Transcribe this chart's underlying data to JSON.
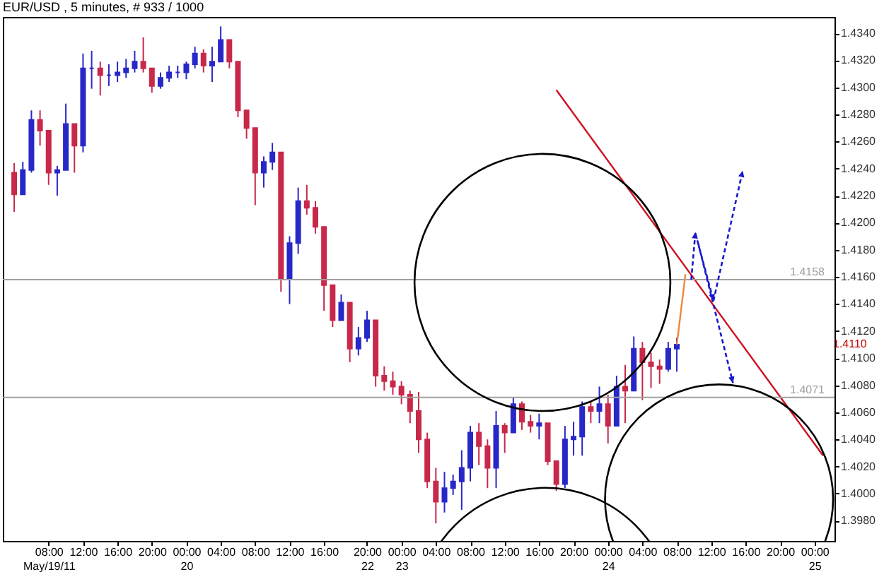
{
  "chart_data": {
    "type": "candlestick",
    "title": "EUR/USD , 5 minutes, # 933 / 1000",
    "categories": [
      null,
      null,
      null,
      null,
      "08:00\nMay/19/11",
      null,
      null,
      null,
      "12:00",
      null,
      null,
      null,
      "16:00",
      null,
      null,
      null,
      "20:00",
      null,
      null,
      null,
      "00:00\n20",
      null,
      null,
      null,
      "04:00",
      null,
      null,
      null,
      "08:00",
      null,
      null,
      null,
      "12:00",
      null,
      null,
      null,
      "16:00",
      null,
      null,
      null,
      null,
      "20:00\n22",
      null,
      null,
      null,
      "00:00\n23",
      null,
      null,
      null,
      "04:00",
      null,
      null,
      null,
      "08:00",
      null,
      null,
      null,
      "12:00",
      null,
      null,
      null,
      "16:00",
      null,
      null,
      null,
      "20:00",
      null,
      null,
      null,
      "00:00\n24",
      null,
      null,
      null,
      "04:00",
      null,
      null,
      null,
      "08:00",
      null,
      null,
      null,
      "12:00",
      null,
      null,
      null,
      "16:00",
      null,
      null,
      null,
      "20:00",
      null,
      null,
      null,
      "00:00\n25",
      null
    ],
    "ohlc": [
      [
        1.4237,
        1.4244,
        1.4208,
        1.4221
      ],
      [
        1.4221,
        1.4245,
        1.4221,
        1.4239
      ],
      [
        1.4239,
        1.4283,
        1.4237,
        1.4276
      ],
      [
        1.4276,
        1.4283,
        1.4257,
        1.4268
      ],
      [
        1.4268,
        1.4268,
        1.4228,
        1.4237
      ],
      [
        1.4237,
        1.4242,
        1.422,
        1.4239
      ],
      [
        1.4239,
        1.4288,
        1.4239,
        1.4273
      ],
      [
        1.4273,
        1.4273,
        1.4237,
        1.4257
      ],
      [
        1.4257,
        1.4325,
        1.4252,
        1.4314
      ],
      [
        1.4314,
        1.4327,
        1.4299,
        1.4314
      ],
      [
        1.4314,
        1.4319,
        1.4294,
        1.4309
      ],
      [
        1.4309,
        1.4317,
        1.4301,
        1.4309
      ],
      [
        1.4309,
        1.4319,
        1.4304,
        1.4311
      ],
      [
        1.4311,
        1.4321,
        1.4307,
        1.4314
      ],
      [
        1.4314,
        1.4327,
        1.4311,
        1.4319
      ],
      [
        1.4319,
        1.4337,
        1.4311,
        1.4314
      ],
      [
        1.4314,
        1.4314,
        1.4296,
        1.4301
      ],
      [
        1.4301,
        1.4311,
        1.4299,
        1.4307
      ],
      [
        1.4307,
        1.4316,
        1.4304,
        1.4311
      ],
      [
        1.4311,
        1.4316,
        1.4307,
        1.4311
      ],
      [
        1.4311,
        1.4319,
        1.4306,
        1.4317
      ],
      [
        1.4317,
        1.433,
        1.4314,
        1.4325
      ],
      [
        1.4325,
        1.4328,
        1.4311,
        1.4316
      ],
      [
        1.4316,
        1.433,
        1.4304,
        1.4319
      ],
      [
        1.4319,
        1.4345,
        1.4319,
        1.4335
      ],
      [
        1.4335,
        1.4335,
        1.4314,
        1.4319
      ],
      [
        1.4319,
        1.4319,
        1.4278,
        1.4283
      ],
      [
        1.4283,
        1.4283,
        1.4262,
        1.427
      ],
      [
        1.427,
        1.427,
        1.4213,
        1.4237
      ],
      [
        1.4237,
        1.4249,
        1.4226,
        1.4245
      ],
      [
        1.4245,
        1.4259,
        1.4239,
        1.4252
      ],
      [
        1.4252,
        1.4252,
        1.4149,
        1.4159
      ],
      [
        1.4159,
        1.419,
        1.414,
        1.4185
      ],
      [
        1.4185,
        1.4226,
        1.4177,
        1.4216
      ],
      [
        1.4216,
        1.4228,
        1.4206,
        1.4211
      ],
      [
        1.4211,
        1.4216,
        1.4192,
        1.4197
      ],
      [
        1.4197,
        1.4197,
        1.4135,
        1.4154
      ],
      [
        1.4154,
        1.4154,
        1.4123,
        1.4128
      ],
      [
        1.4128,
        1.4147,
        1.4128,
        1.4141
      ],
      [
        1.4141,
        1.4141,
        1.4097,
        1.4107
      ],
      [
        1.4107,
        1.4123,
        1.4102,
        1.4115
      ],
      [
        1.4115,
        1.4135,
        1.4112,
        1.4128
      ],
      [
        1.4128,
        1.4128,
        1.4079,
        1.4087
      ],
      [
        1.4087,
        1.4094,
        1.4076,
        1.4083
      ],
      [
        1.4083,
        1.409,
        1.4073,
        1.4079
      ],
      [
        1.4079,
        1.4083,
        1.4066,
        1.4073
      ],
      [
        1.4073,
        1.4076,
        1.4052,
        1.4061
      ],
      [
        1.4061,
        1.4075,
        1.403,
        1.404
      ],
      [
        1.404,
        1.4045,
        1.4004,
        1.4009
      ],
      [
        1.4009,
        1.4019,
        1.3978,
        1.3994
      ],
      [
        1.3994,
        1.4016,
        1.3986,
        1.4004
      ],
      [
        1.4004,
        1.4014,
        1.3999,
        1.4009
      ],
      [
        1.4009,
        1.4032,
        1.3988,
        1.4019
      ],
      [
        1.4019,
        1.405,
        1.4009,
        1.4045
      ],
      [
        1.4045,
        1.4052,
        1.4021,
        1.4035
      ],
      [
        1.4035,
        1.404,
        1.4004,
        1.4019
      ],
      [
        1.4019,
        1.4061,
        1.4004,
        1.405
      ],
      [
        1.405,
        1.4052,
        1.403,
        1.4045
      ],
      [
        1.4045,
        1.4071,
        1.4045,
        1.4066
      ],
      [
        1.4066,
        1.4068,
        1.4047,
        1.4053
      ],
      [
        1.4053,
        1.4058,
        1.4045,
        1.405
      ],
      [
        1.405,
        1.4059,
        1.404,
        1.4052
      ],
      [
        1.4052,
        1.4052,
        1.4021,
        1.4024
      ],
      [
        1.4024,
        1.4024,
        1.4002,
        1.4007
      ],
      [
        1.4007,
        1.405,
        1.4004,
        1.404
      ],
      [
        1.404,
        1.4053,
        1.4028,
        1.4042
      ],
      [
        1.4042,
        1.4068,
        1.4028,
        1.4064
      ],
      [
        1.4064,
        1.4068,
        1.4052,
        1.4061
      ],
      [
        1.4061,
        1.4079,
        1.4052,
        1.4066
      ],
      [
        1.4066,
        1.4073,
        1.4037,
        1.405
      ],
      [
        1.405,
        1.4087,
        1.405,
        1.4079
      ],
      [
        1.4079,
        1.4095,
        1.4052,
        1.4076
      ],
      [
        1.4076,
        1.4116,
        1.4076,
        1.4107
      ],
      [
        1.4107,
        1.4112,
        1.4069,
        1.4097
      ],
      [
        1.4097,
        1.4104,
        1.4078,
        1.4094
      ],
      [
        1.4094,
        1.4099,
        1.4081,
        1.4092
      ],
      [
        1.4092,
        1.4112,
        1.409,
        1.4107
      ],
      [
        1.4107,
        1.4115,
        1.409,
        1.411
      ],
      null,
      null,
      null,
      null,
      null,
      null,
      null,
      null,
      null,
      null,
      null,
      null,
      null,
      null,
      null,
      null,
      null
    ],
    "colors": [
      "#c8284a",
      "#2828c8",
      "#2828c8",
      "#c8284a",
      "#c8284a",
      "#2828c8",
      "#2828c8",
      "#c8284a",
      "#2828c8",
      "#2828c8",
      "#c8284a",
      "#2828c8",
      "#2828c8",
      "#2828c8",
      "#2828c8",
      "#c8284a",
      "#c8284a",
      "#2828c8",
      "#2828c8",
      "#2828c8",
      "#2828c8",
      "#2828c8",
      "#c8284a",
      "#2828c8",
      "#2828c8",
      "#c8284a",
      "#c8284a",
      "#c8284a",
      "#c8284a",
      "#2828c8",
      "#2828c8",
      "#c8284a",
      "#2828c8",
      "#2828c8",
      "#c8284a",
      "#c8284a",
      "#c8284a",
      "#c8284a",
      "#2828c8",
      "#c8284a",
      "#2828c8",
      "#2828c8",
      "#c8284a",
      "#c8284a",
      "#c8284a",
      "#c8284a",
      "#c8284a",
      "#c8284a",
      "#c8284a",
      "#c8284a",
      "#2828c8",
      "#2828c8",
      "#2828c8",
      "#2828c8",
      "#c8284a",
      "#c8284a",
      "#2828c8",
      "#c8284a",
      "#2828c8",
      "#c8284a",
      "#c8284a",
      "#2828c8",
      "#c8284a",
      "#c8284a",
      "#2828c8",
      "#2828c8",
      "#2828c8",
      "#c8284a",
      "#2828c8",
      "#c8284a",
      "#2828c8",
      "#c8284a",
      "#2828c8",
      "#c8284a",
      "#c8284a",
      "#c8284a",
      "#2828c8",
      "#2828c8",
      null,
      null,
      null,
      null,
      null,
      null,
      null,
      null,
      null,
      null,
      null,
      null,
      null,
      null,
      null,
      null,
      null
    ],
    "series": [
      {
        "type": "line",
        "color": "#d01020",
        "values": [
          null,
          null,
          null,
          null,
          null,
          null,
          null,
          null,
          null,
          null,
          null,
          null,
          null,
          null,
          null,
          null,
          null,
          null,
          null,
          null,
          null,
          null,
          null,
          null,
          null,
          null,
          null,
          null,
          null,
          null,
          null,
          null,
          null,
          null,
          null,
          null,
          null,
          null,
          null,
          null,
          null,
          null,
          null,
          null,
          null,
          null,
          null,
          null,
          null,
          null,
          null,
          null,
          null,
          null,
          null,
          null,
          null,
          null,
          null,
          null,
          null,
          null,
          null,
          1.4298,
          null,
          null,
          null,
          null,
          null,
          null,
          null,
          null,
          null,
          null,
          null,
          null,
          null,
          null,
          null,
          null,
          null,
          null,
          null,
          null,
          null,
          null,
          null,
          null,
          null,
          null,
          null,
          null,
          null,
          null,
          1.4028
        ]
      },
      {
        "type": "line",
        "color": "#f0883c",
        "values": [
          null,
          null,
          null,
          null,
          null,
          null,
          null,
          null,
          null,
          null,
          null,
          null,
          null,
          null,
          null,
          null,
          null,
          null,
          null,
          null,
          null,
          null,
          null,
          null,
          null,
          null,
          null,
          null,
          null,
          null,
          null,
          null,
          null,
          null,
          null,
          null,
          null,
          null,
          null,
          null,
          null,
          null,
          null,
          null,
          null,
          null,
          null,
          null,
          null,
          null,
          null,
          null,
          null,
          null,
          null,
          null,
          null,
          null,
          null,
          null,
          null,
          null,
          null,
          null,
          null,
          null,
          null,
          null,
          null,
          null,
          null,
          null,
          null,
          null,
          null,
          null,
          null,
          1.411,
          1.4162,
          null,
          null,
          null,
          null,
          null,
          null,
          null,
          null,
          null,
          null,
          null,
          null,
          null,
          null,
          null,
          null
        ]
      }
    ],
    "ylim": [
      1.3965,
      1.4352
    ],
    "yticks": [
      {
        "value": 1.398,
        "label": "1.3980"
      },
      {
        "value": 1.4,
        "label": "1.4000"
      },
      {
        "value": 1.402,
        "label": "1.4020"
      },
      {
        "value": 1.404,
        "label": "1.4040"
      },
      {
        "value": 1.406,
        "label": "1.4060"
      },
      {
        "value": 1.408,
        "label": "1.4080"
      },
      {
        "value": 1.41,
        "label": "1.4100"
      },
      {
        "value": 1.412,
        "label": "1.4120"
      },
      {
        "value": 1.414,
        "label": "1.4140"
      },
      {
        "value": 1.416,
        "label": "1.4160"
      },
      {
        "value": 1.418,
        "label": "1.4180"
      },
      {
        "value": 1.42,
        "label": "1.4200"
      },
      {
        "value": 1.422,
        "label": "1.4220"
      },
      {
        "value": 1.424,
        "label": "1.4240"
      },
      {
        "value": 1.426,
        "label": "1.4260"
      },
      {
        "value": 1.428,
        "label": "1.4280"
      },
      {
        "value": 1.43,
        "label": "1.4300"
      },
      {
        "value": 1.432,
        "label": "1.4320"
      },
      {
        "value": 1.434,
        "label": "1.4340"
      }
    ],
    "ref_lines": [
      {
        "axis": "y",
        "value": 1.4158,
        "label": "1.4158",
        "color": "#a0a0a0"
      },
      {
        "axis": "y",
        "value": 1.4071,
        "label": "1.4071",
        "color": "#a0a0a0"
      }
    ],
    "annotations": [
      "1.4110"
    ]
  }
}
